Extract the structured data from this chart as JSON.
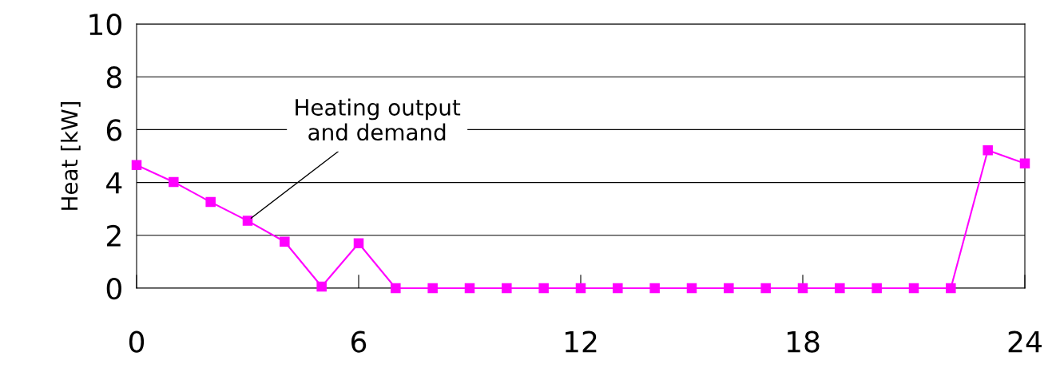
{
  "chart_data": {
    "type": "line",
    "ylabel": "Heat [kW]",
    "x": [
      0,
      1,
      2,
      3,
      4,
      5,
      6,
      7,
      8,
      9,
      10,
      11,
      12,
      13,
      14,
      15,
      16,
      17,
      18,
      19,
      20,
      21,
      22,
      23,
      24
    ],
    "series": [
      {
        "color": "#ff00ff",
        "values": [
          4.66,
          4.02,
          3.26,
          2.55,
          1.76,
          0.06,
          1.7,
          0,
          0,
          0,
          0,
          0,
          0,
          0,
          0,
          0,
          0,
          0,
          0,
          0,
          0,
          0,
          0,
          5.22,
          4.72
        ]
      }
    ],
    "xlim": [
      0,
      24
    ],
    "xticks": [
      0,
      6,
      12,
      18,
      24
    ],
    "ylim": [
      0,
      10
    ],
    "yticks": [
      0,
      2,
      4,
      6,
      8,
      10
    ],
    "grid": "y",
    "marker": "square",
    "line_style": "solid",
    "annotations": [
      {
        "text": "Heating output\nand demand",
        "x": 3,
        "y": 2.55
      }
    ]
  }
}
